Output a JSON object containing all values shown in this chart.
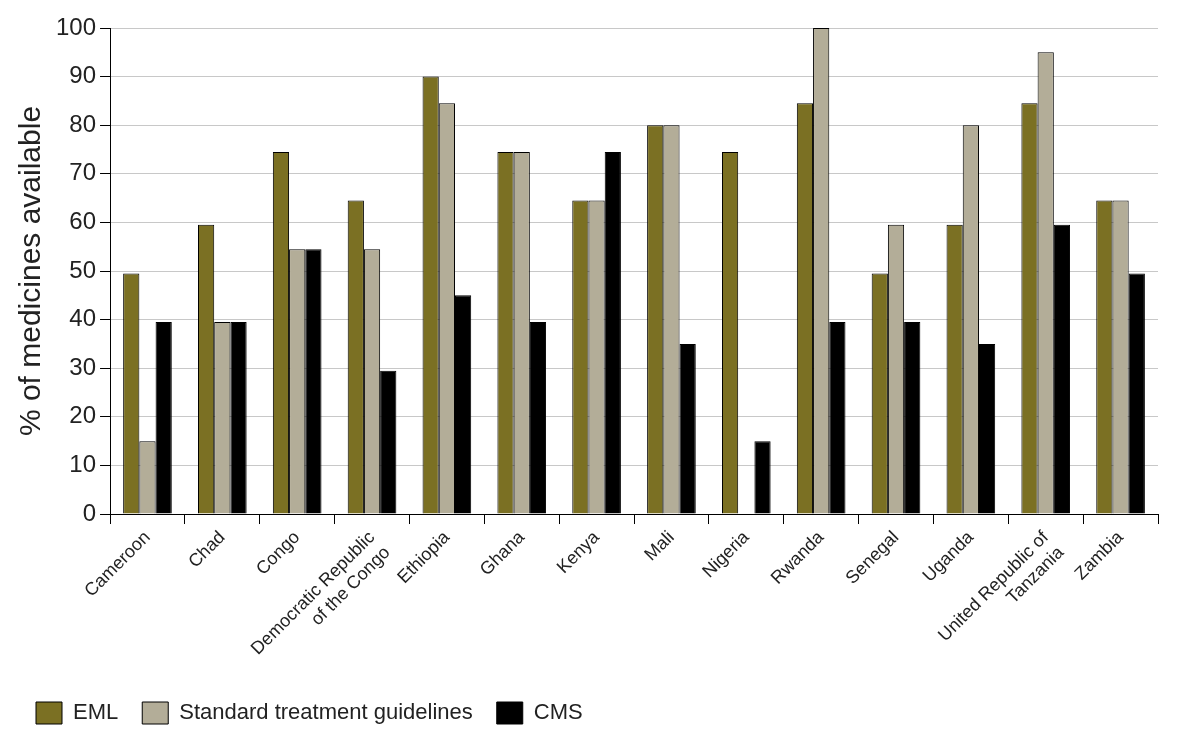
{
  "chart_data": {
    "type": "bar",
    "ylabel": "% of medicines available",
    "categories": [
      "Cameroon",
      "Chad",
      "Congo",
      "Democratic Republic of the Congo",
      "Ethiopia",
      "Ghana",
      "Kenya",
      "Mali",
      "Nigeria",
      "Rwanda",
      "Senegal",
      "Uganda",
      "United Republic of Tanzania",
      "Zambia"
    ],
    "series": [
      {
        "name": "EML",
        "color": "#7b7023",
        "values": [
          49.5,
          59.5,
          74.5,
          64.5,
          90,
          74.5,
          64.5,
          80,
          74.5,
          84.5,
          49.5,
          59.5,
          84.5,
          64.5
        ]
      },
      {
        "name": "Standard treatment guidelines",
        "color": "#b3ad98",
        "values": [
          15,
          39.5,
          54.5,
          54.5,
          84.5,
          74.5,
          64.5,
          80,
          null,
          100,
          59.5,
          80,
          95,
          64.5
        ]
      },
      {
        "name": "CMS",
        "color": "#000000",
        "values": [
          39.5,
          39.5,
          54.5,
          29.5,
          45,
          39.5,
          74.5,
          35,
          15,
          39.5,
          39.5,
          35,
          59.5,
          49.5
        ]
      }
    ],
    "ylim": [
      0,
      100
    ],
    "yticks": [
      0,
      10,
      20,
      30,
      40,
      50,
      60,
      70,
      80,
      90,
      100
    ],
    "grid": "y",
    "legend": "bottom left"
  }
}
